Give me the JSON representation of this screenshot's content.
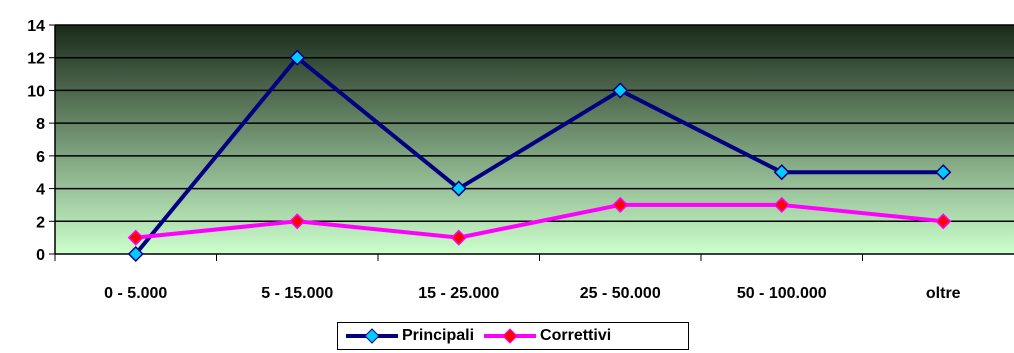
{
  "chart_data": {
    "type": "line",
    "categories": [
      "0 - 5.000",
      "5 - 15.000",
      "15 - 25.000",
      "25 - 50.000",
      "50 - 100.000",
      "oltre"
    ],
    "series": [
      {
        "name": "Principali",
        "values": [
          0,
          12,
          4,
          10,
          5,
          5
        ],
        "color": "#000080",
        "marker_color": "#00ccff"
      },
      {
        "name": "Correttivi",
        "values": [
          1,
          2,
          1,
          3,
          3,
          2
        ],
        "color": "#ff00ff",
        "marker_color": "#ff0000"
      }
    ],
    "y_ticks": [
      "0",
      "2",
      "4",
      "6",
      "8",
      "10",
      "12",
      "14"
    ],
    "ylim": [
      0,
      14
    ],
    "grid": true,
    "legend_position": "bottom",
    "plot_background": {
      "top": "#1a2a1a",
      "bottom": "#ccffcc"
    }
  }
}
